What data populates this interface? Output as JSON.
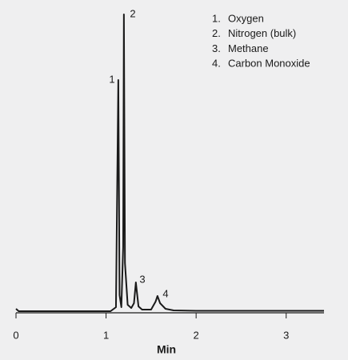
{
  "chart_data": {
    "type": "line",
    "color": "#1a1a1a",
    "x_label": "Min",
    "xlim": [
      0,
      3.42
    ],
    "xticks": [
      0,
      1,
      2,
      3
    ],
    "x": [
      0,
      0.01,
      0.03,
      1.05,
      1.11,
      1.136,
      1.15,
      1.17,
      1.19,
      1.198,
      1.21,
      1.24,
      1.28,
      1.31,
      1.331,
      1.36,
      1.4,
      1.5,
      1.55,
      1.571,
      1.6,
      1.66,
      1.75,
      2.0,
      3.42
    ],
    "values": [
      3,
      2,
      0,
      0,
      5,
      289,
      20,
      5,
      80,
      371,
      60,
      8,
      4,
      10,
      36,
      6,
      2,
      2,
      12,
      19,
      10,
      3,
      1,
      0.5,
      0.5
    ],
    "peak_labels": [
      "1",
      "2",
      "3",
      "4"
    ],
    "legend": [
      {
        "number": "1.",
        "name": "Oxygen"
      },
      {
        "number": "2.",
        "name": "Nitrogen (bulk)"
      },
      {
        "number": "3.",
        "name": "Methane"
      },
      {
        "number": "4.",
        "name": "Carbon Monoxide"
      }
    ]
  }
}
